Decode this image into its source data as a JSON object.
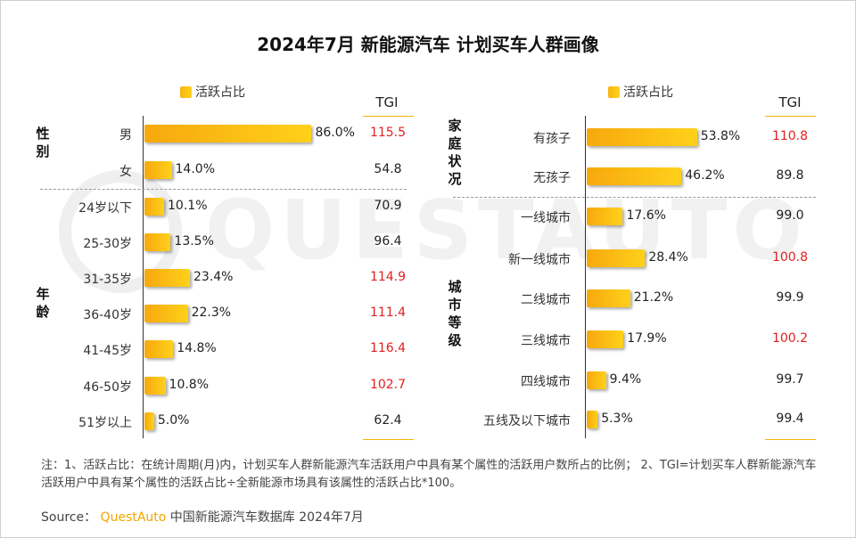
{
  "title": "2024年7月 新能源汽车 计划买车人群画像",
  "watermark": "QUESTAUTO",
  "legend_label": "活跃占比",
  "tgi_header": "TGI",
  "colors": {
    "bar": "#f8b313",
    "tgi_high": "#e02020",
    "tgi_normal": "#222222",
    "gold_line": "#f4b400"
  },
  "chart_data": [
    {
      "type": "bar",
      "panel": "left",
      "groups": [
        {
          "name": "性别",
          "label_chars": [
            "性",
            "别"
          ],
          "categories": [
            "男",
            "女"
          ],
          "values": [
            86.0,
            14.0
          ],
          "value_labels": [
            "86.0%",
            "14.0%"
          ],
          "tgi": [
            "115.5",
            "54.8"
          ],
          "tgi_high": [
            true,
            false
          ]
        },
        {
          "name": "年龄",
          "label_chars": [
            "年",
            "龄"
          ],
          "categories": [
            "24岁以下",
            "25-30岁",
            "31-35岁",
            "36-40岁",
            "41-45岁",
            "46-50岁",
            "51岁以上"
          ],
          "values": [
            10.1,
            13.5,
            23.4,
            22.3,
            14.8,
            10.8,
            5.0
          ],
          "value_labels": [
            "10.1%",
            "13.5%",
            "23.4%",
            "22.3%",
            "14.8%",
            "10.8%",
            "5.0%"
          ],
          "tgi": [
            "70.9",
            "96.4",
            "114.9",
            "111.4",
            "116.4",
            "102.7",
            "62.4"
          ],
          "tgi_high": [
            false,
            false,
            true,
            true,
            true,
            true,
            false
          ]
        }
      ]
    },
    {
      "type": "bar",
      "panel": "right",
      "groups": [
        {
          "name": "家庭状况",
          "label_chars": [
            "家",
            "庭",
            "状",
            "况"
          ],
          "categories": [
            "有孩子",
            "无孩子"
          ],
          "values": [
            53.8,
            46.2
          ],
          "value_labels": [
            "53.8%",
            "46.2%"
          ],
          "tgi": [
            "110.8",
            "89.8"
          ],
          "tgi_high": [
            true,
            false
          ]
        },
        {
          "name": "城市等级",
          "label_chars": [
            "城",
            "市",
            "等",
            "级"
          ],
          "categories": [
            "一线城市",
            "新一线城市",
            "二线城市",
            "三线城市",
            "四线城市",
            "五线及以下城市"
          ],
          "values": [
            17.6,
            28.4,
            21.2,
            17.9,
            9.4,
            5.3
          ],
          "value_labels": [
            "17.6%",
            "28.4%",
            "21.2%",
            "17.9%",
            "9.4%",
            "5.3%"
          ],
          "tgi": [
            "99.0",
            "100.8",
            "99.9",
            "100.2",
            "99.7",
            "99.4"
          ],
          "tgi_high": [
            false,
            true,
            false,
            true,
            false,
            false
          ]
        }
      ]
    }
  ],
  "note": "注：1、活跃占比：在统计周期(月)内，计划买车人群新能源汽车活跃用户中具有某个属性的活跃用户数所占的比例；  2、TGI=计划买车人群新能源汽车活跃用户中具有某个属性的活跃占比÷全新能源市场具有该属性的活跃占比*100。",
  "source": {
    "prefix": "Source：",
    "brand": "QuestAuto",
    "suffix": "中国新能源汽车数据库 2024年7月"
  }
}
